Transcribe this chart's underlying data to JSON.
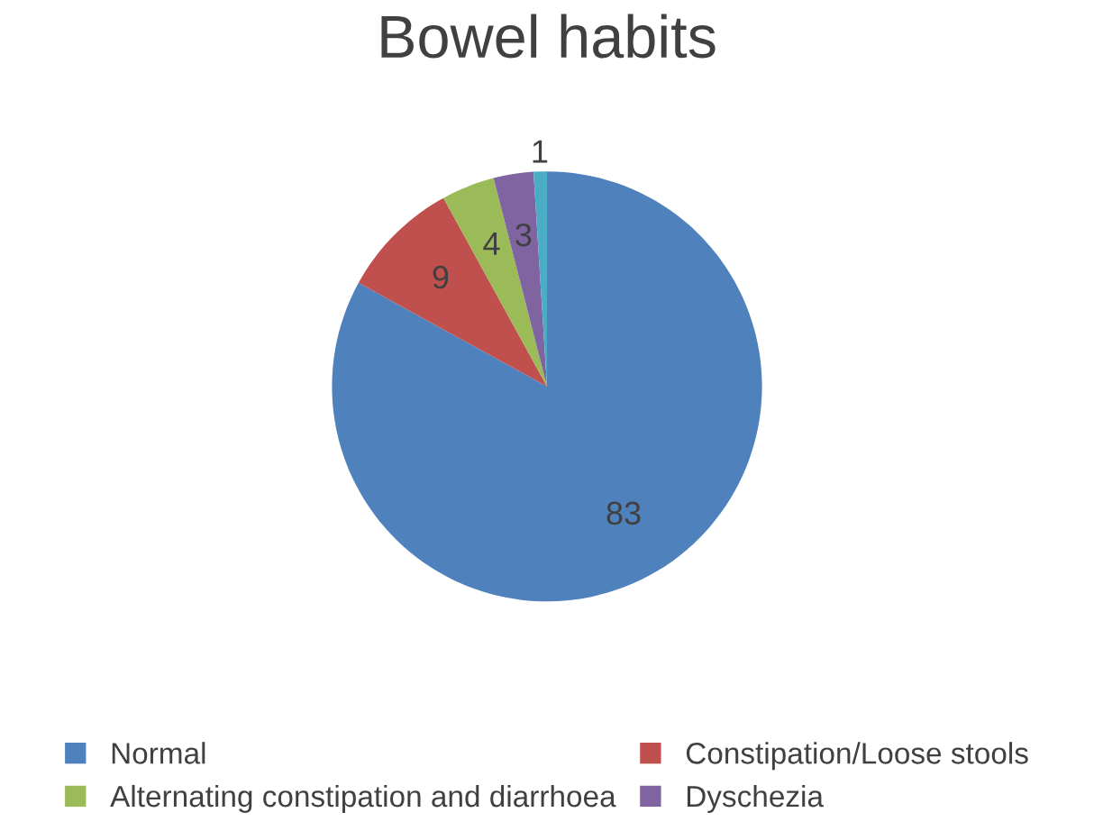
{
  "chart_data": {
    "type": "pie",
    "title": "Bowel habits",
    "categories": [
      "Normal",
      "Constipation/Loose stools",
      "Alternating constipation and diarrhoea",
      "Dyschezia",
      null
    ],
    "values": [
      83,
      9,
      4,
      3,
      1
    ],
    "colors": [
      "#4f81bd",
      "#c0504d",
      "#9bbb59",
      "#8064a2",
      "#4bacc6"
    ],
    "data_labels": true,
    "legend": "bottom"
  }
}
